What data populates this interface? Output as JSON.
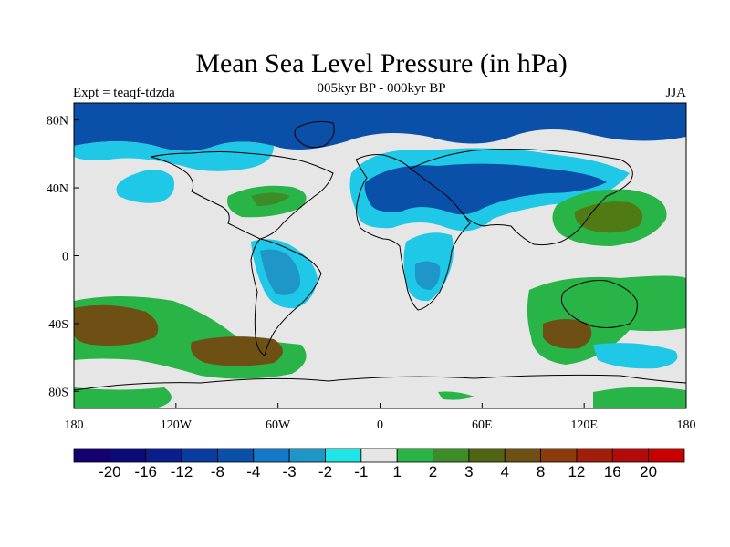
{
  "title": "Mean Sea Level Pressure (in hPa)",
  "subtitle": "005kyr BP - 000kyr BP",
  "left_label": "Expt = teaqf-tdzda",
  "right_label": "JJA",
  "map": {
    "projection": "equirectangular",
    "lon_range": [
      -180,
      180
    ],
    "lat_range": [
      -90,
      90
    ],
    "x_ticks": [
      {
        "lon": -180,
        "label": "180"
      },
      {
        "lon": -120,
        "label": "120W"
      },
      {
        "lon": -60,
        "label": "60W"
      },
      {
        "lon": 0,
        "label": "0"
      },
      {
        "lon": 60,
        "label": "60E"
      },
      {
        "lon": 120,
        "label": "120E"
      },
      {
        "lon": 180,
        "label": "180"
      }
    ],
    "y_ticks": [
      {
        "lat": 80,
        "label": "80N"
      },
      {
        "lat": 40,
        "label": "40N"
      },
      {
        "lat": 0,
        "label": "0"
      },
      {
        "lat": -40,
        "label": "40S"
      },
      {
        "lat": -80,
        "label": "80S"
      }
    ],
    "background_color": "#e6e6e6",
    "field_regions": [
      {
        "name": "arctic-low",
        "level": "-8",
        "color": "#0a50a8"
      },
      {
        "name": "eurasia-low",
        "level": "-8",
        "color": "#0a50a8"
      },
      {
        "name": "south-america-low",
        "level": "-3",
        "color": "#1e96c8"
      },
      {
        "name": "africa-low",
        "level": "-2",
        "color": "#1ec8e6"
      },
      {
        "name": "n-atlantic-high",
        "level": "2",
        "color": "#28b446"
      },
      {
        "name": "nw-pacific-high",
        "level": "3",
        "color": "#507a14"
      },
      {
        "name": "s-pacific-high",
        "level": "4",
        "color": "#6e5014"
      },
      {
        "name": "s-atlantic-high",
        "level": "4",
        "color": "#6e5014"
      },
      {
        "name": "s-indian-high",
        "level": "4",
        "color": "#6e5014"
      }
    ]
  },
  "colorbar": {
    "colors": [
      "#14006e",
      "#0a0a78",
      "#0a1e8c",
      "#0a3ca0",
      "#0a50a8",
      "#1478c8",
      "#1e96c8",
      "#1ee6e6",
      "#e6e6e6",
      "#28b446",
      "#3c8c28",
      "#506414",
      "#6e5014",
      "#8c3c0a",
      "#a01e0a",
      "#b40a0a",
      "#c80000"
    ],
    "labels": [
      "-20",
      "-16",
      "-12",
      "-8",
      "-4",
      "-3",
      "-2",
      "-1",
      "1",
      "2",
      "3",
      "4",
      "8",
      "12",
      "16",
      "20"
    ]
  }
}
